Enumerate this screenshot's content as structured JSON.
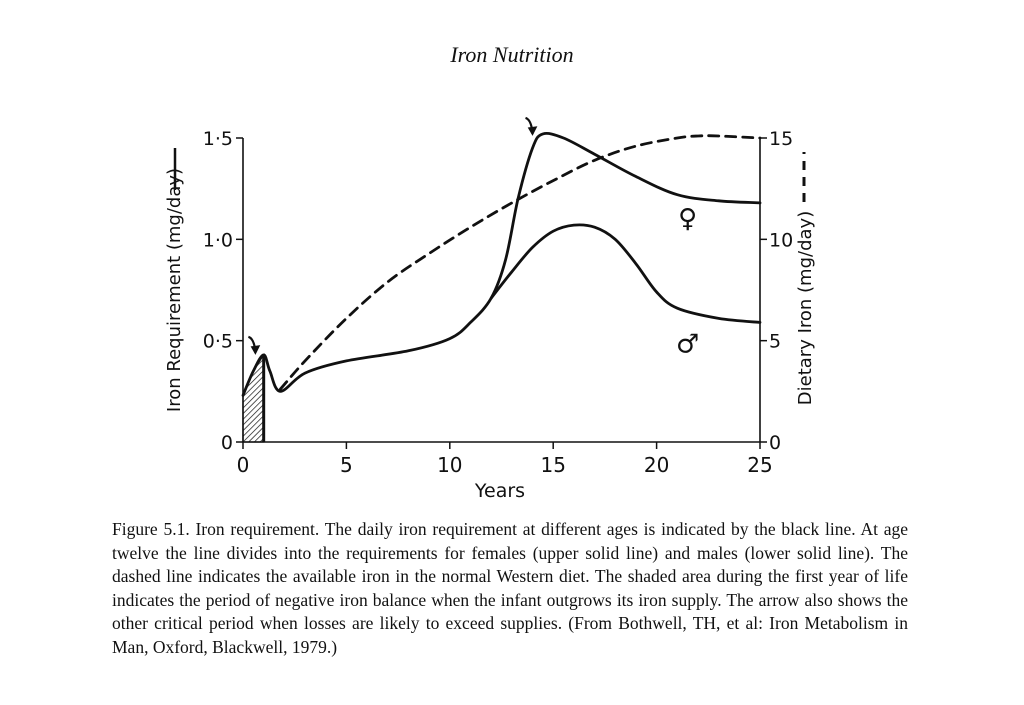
{
  "header": {
    "title": "Iron Nutrition"
  },
  "chart_data": {
    "type": "line",
    "xlabel": "Years",
    "ylabel_left": "Iron Requirement (mg/day)",
    "ylabel_right": "Dietary Iron (mg/day)",
    "xlim": [
      0,
      25
    ],
    "ylim_left": [
      0,
      1.5
    ],
    "ylim_right": [
      0,
      15
    ],
    "x_ticks": [
      "0",
      "5",
      "10",
      "15",
      "20",
      "25"
    ],
    "y_ticks_left": [
      "0",
      "0·5",
      "1·0",
      "1·5"
    ],
    "y_ticks_right": [
      "0",
      "5",
      "10",
      "15"
    ],
    "grid": false,
    "series": [
      {
        "name": "♀",
        "axis": "left",
        "style": "solid",
        "x": [
          0,
          0.5,
          1.0,
          1.3,
          1.8,
          3,
          5,
          8,
          10,
          11,
          12,
          12.7,
          13.3,
          14,
          14.5,
          15.5,
          17,
          19,
          21,
          23,
          25
        ],
        "y": [
          0.23,
          0.35,
          0.43,
          0.35,
          0.25,
          0.34,
          0.4,
          0.45,
          0.51,
          0.59,
          0.71,
          0.9,
          1.2,
          1.45,
          1.52,
          1.5,
          1.42,
          1.31,
          1.22,
          1.19,
          1.18
        ]
      },
      {
        "name": "♂",
        "axis": "left",
        "style": "solid",
        "x": [
          12,
          13,
          14,
          15,
          16,
          17,
          18,
          19,
          20,
          21,
          23,
          25
        ],
        "y": [
          0.71,
          0.84,
          0.96,
          1.04,
          1.07,
          1.06,
          1.0,
          0.88,
          0.74,
          0.66,
          0.61,
          0.59
        ]
      },
      {
        "name": "",
        "axis": "right",
        "style": "dashed",
        "x": [
          1.8,
          3,
          5,
          7,
          9,
          11,
          13,
          15,
          17,
          19,
          21,
          22,
          23,
          25
        ],
        "y": [
          2.6,
          4.0,
          6.1,
          7.9,
          9.3,
          10.6,
          11.8,
          12.9,
          13.9,
          14.6,
          15.0,
          15.1,
          15.1,
          15.0
        ]
      }
    ],
    "annotations": [
      {
        "type": "shaded-area",
        "x_range": [
          0,
          1
        ]
      },
      {
        "type": "arrow",
        "x": 0.6,
        "y": 0.46
      },
      {
        "type": "arrow",
        "x": 14.0,
        "y": 1.55
      }
    ]
  },
  "caption": "Figure 5.1.  Iron requirement.  The daily iron requirement at different ages is indicated by the black line.  At age twelve the line divides into the requirements for females (upper solid line) and males (lower solid line).  The dashed line indicates the available iron in the normal Western diet.  The shaded area during the first year of life indicates the period of negative iron balance when the infant outgrows its iron supply.  The arrow also shows the other critical period when losses are likely to exceed supplies.  (From Bothwell, TH, et al:  Iron Metabolism in Man, Oxford, Blackwell, 1979.)"
}
